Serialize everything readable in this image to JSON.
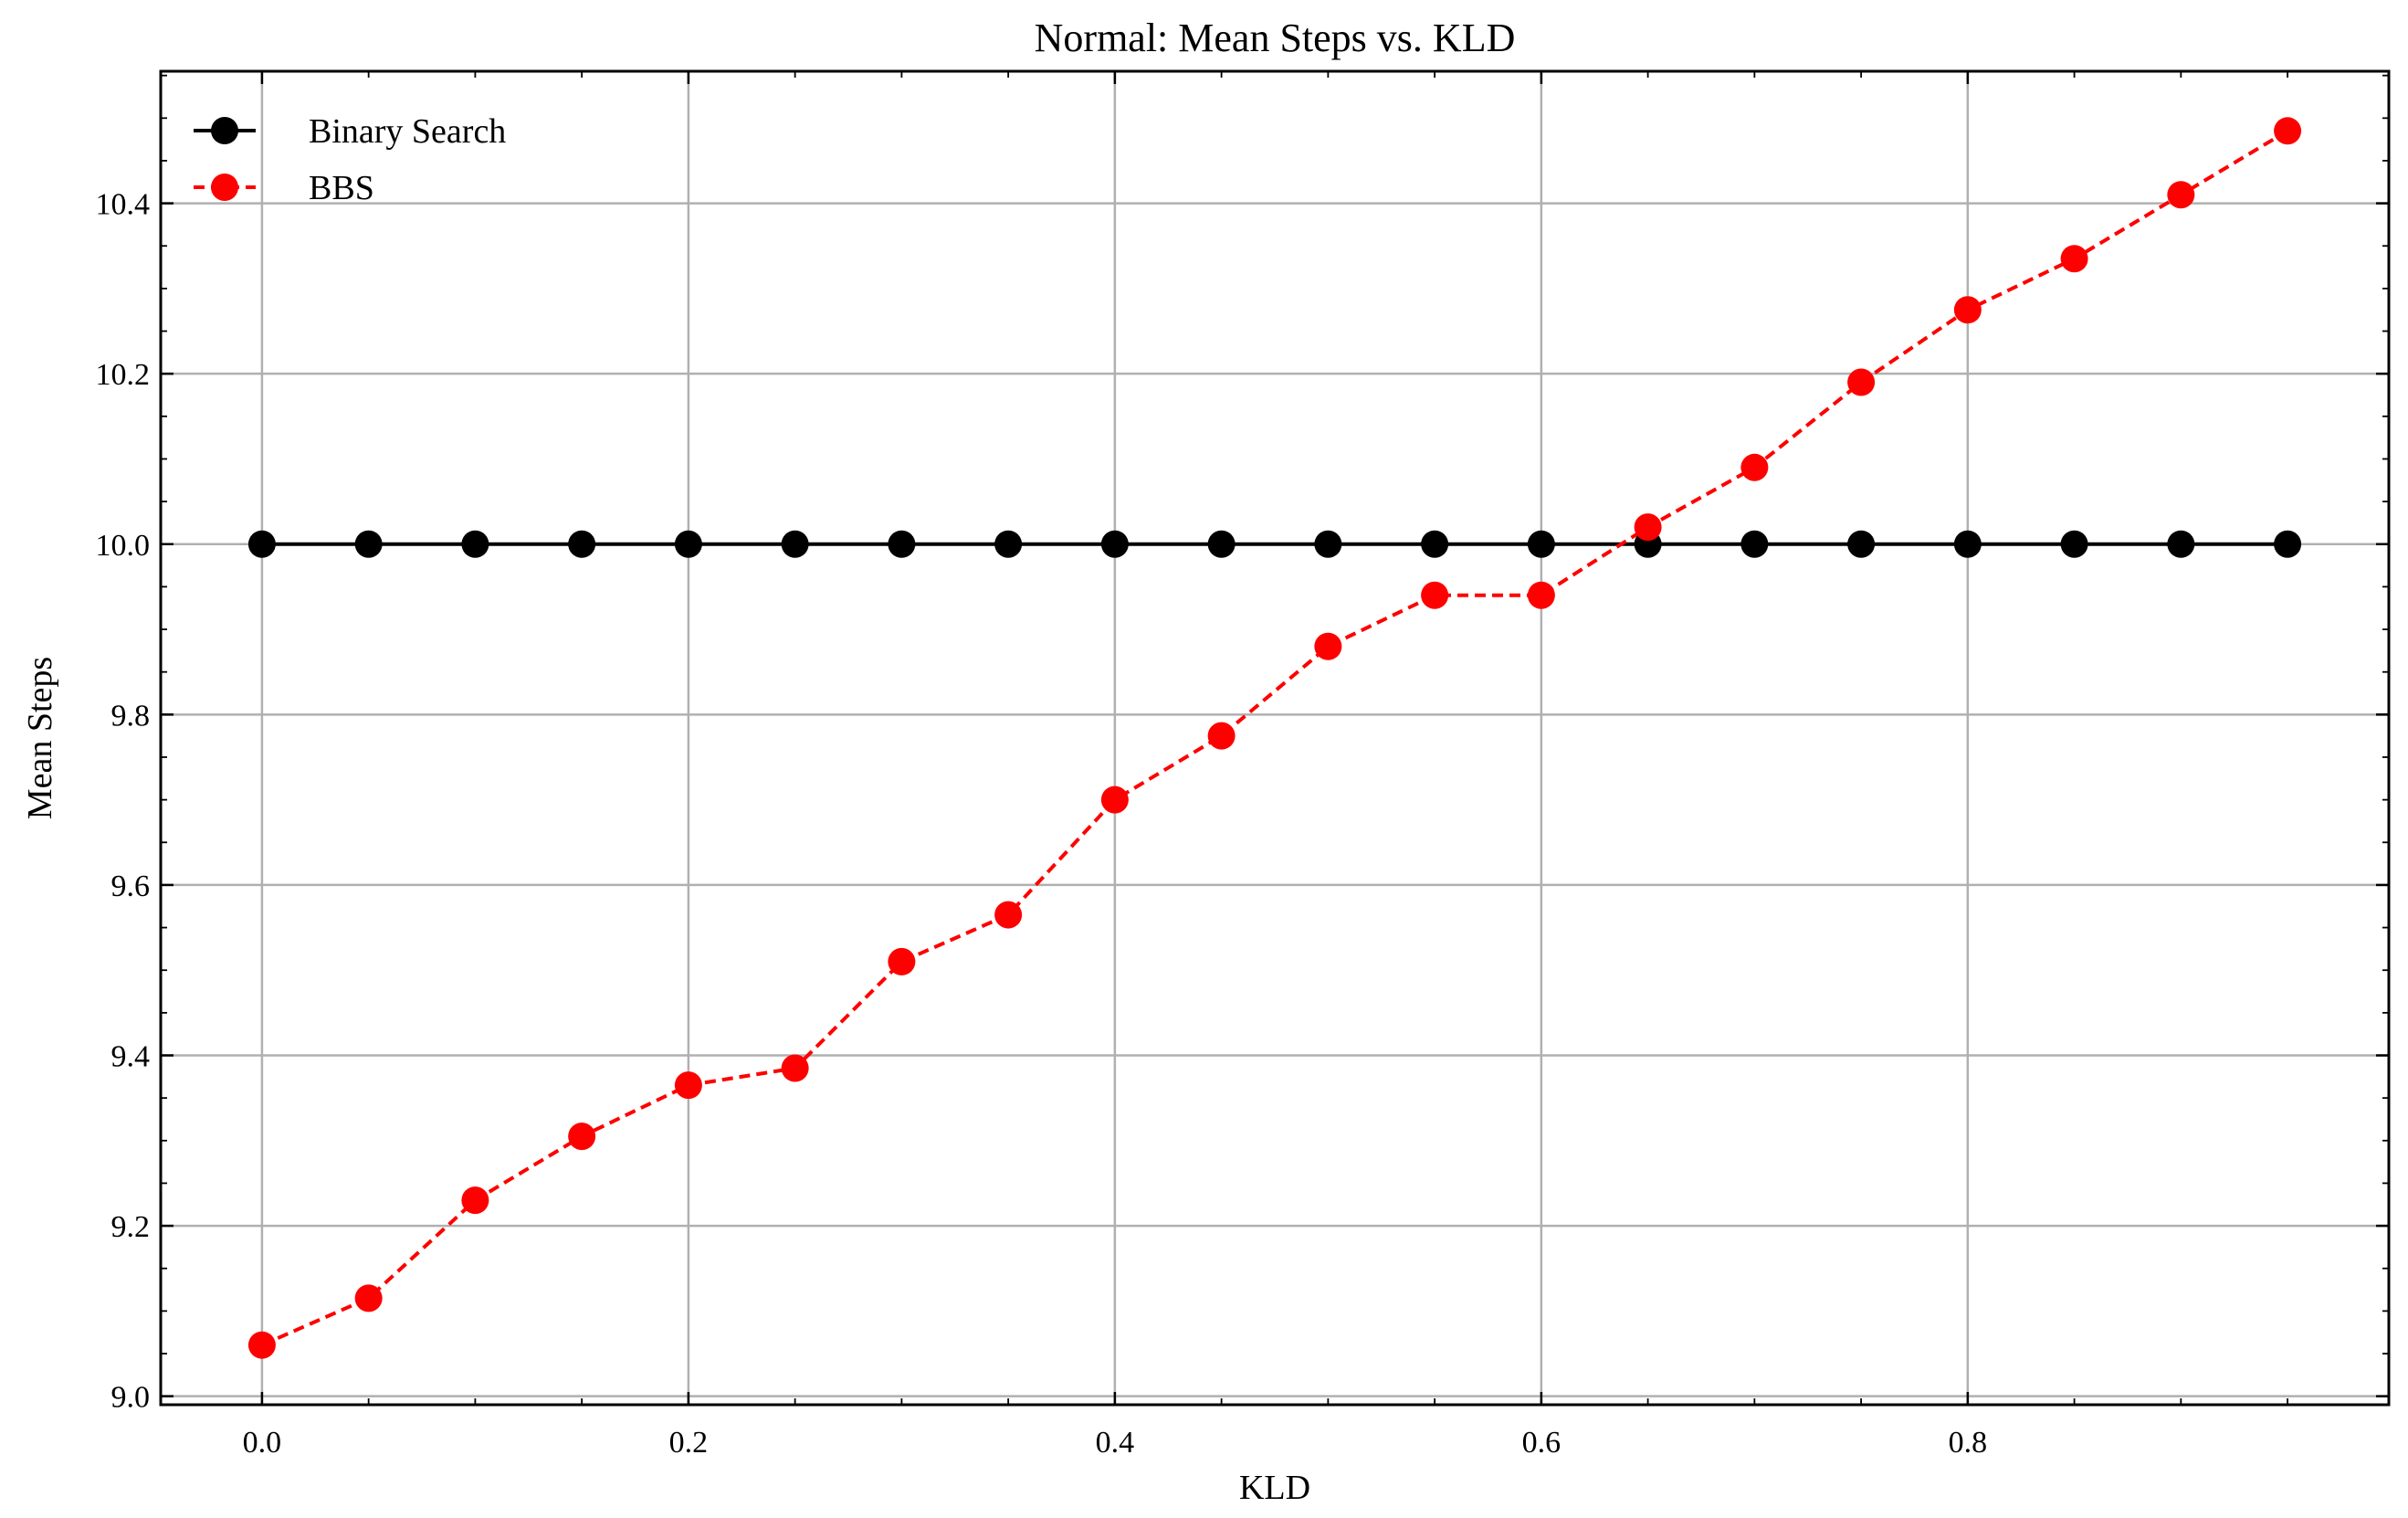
{
  "chart_data": {
    "type": "line",
    "title": "Normal: Mean Steps vs. KLD",
    "xlabel": "KLD",
    "ylabel": "Mean Steps",
    "xlim": [
      -0.0475,
      0.9975
    ],
    "ylim": [
      8.99,
      10.555
    ],
    "xticks": [
      0.0,
      0.2,
      0.4,
      0.6,
      0.8
    ],
    "xtick_labels": [
      "0.0",
      "0.2",
      "0.4",
      "0.6",
      "0.8"
    ],
    "yticks": [
      9.0,
      9.2,
      9.4,
      9.6,
      9.8,
      10.0,
      10.2,
      10.4
    ],
    "ytick_labels": [
      "9.0",
      "9.2",
      "9.4",
      "9.6",
      "9.8",
      "10.0",
      "10.2",
      "10.4"
    ],
    "grid": true,
    "legend_position": "top-left",
    "x": [
      0.0,
      0.05,
      0.1,
      0.15,
      0.2,
      0.25,
      0.3,
      0.35,
      0.4,
      0.45,
      0.5,
      0.55,
      0.6,
      0.65,
      0.7,
      0.75,
      0.8,
      0.85,
      0.9,
      0.95
    ],
    "series": [
      {
        "name": "Binary Search",
        "color": "#000000",
        "line_style": "solid",
        "marker": "circle",
        "values": [
          10.0,
          10.0,
          10.0,
          10.0,
          10.0,
          10.0,
          10.0,
          10.0,
          10.0,
          10.0,
          10.0,
          10.0,
          10.0,
          10.0,
          10.0,
          10.0,
          10.0,
          10.0,
          10.0,
          10.0
        ]
      },
      {
        "name": "BBS",
        "color": "#ff0000",
        "line_style": "dashed",
        "marker": "circle",
        "values": [
          9.06,
          9.115,
          9.23,
          9.305,
          9.365,
          9.385,
          9.51,
          9.565,
          9.7,
          9.775,
          9.88,
          9.94,
          9.94,
          10.02,
          10.09,
          10.19,
          10.275,
          10.335,
          10.41,
          10.485
        ]
      }
    ]
  }
}
